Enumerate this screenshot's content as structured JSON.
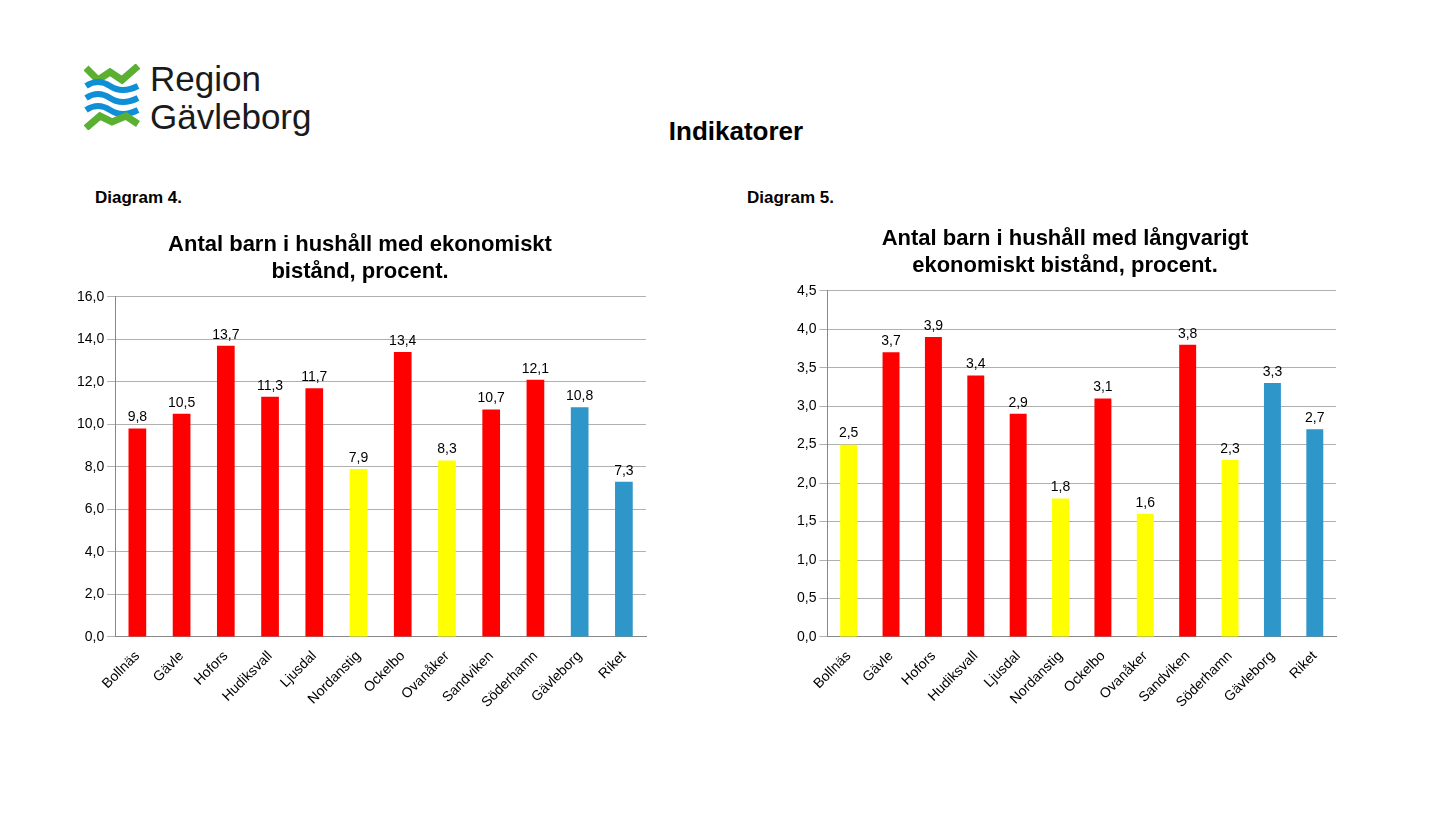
{
  "page": {
    "logo": [
      "Region",
      "Gävleborg"
    ],
    "heading": "Indikatorer"
  },
  "chart_data": [
    {
      "type": "bar",
      "annotation": "Diagram 4.",
      "title": [
        "Antal barn i hushåll med ekonomiskt",
        "bistånd, procent."
      ],
      "categories": [
        "Bollnäs",
        "Gävle",
        "Hofors",
        "Hudiksvall",
        "Ljusdal",
        "Nordanstig",
        "Ockelbo",
        "Ovanåker",
        "Sandviken",
        "Söderhamn",
        "Gävleborg",
        "Riket"
      ],
      "values": [
        9.8,
        10.5,
        13.7,
        11.3,
        11.7,
        7.9,
        13.4,
        8.3,
        10.7,
        12.1,
        10.8,
        7.3
      ],
      "value_labels": [
        "9,8",
        "10,5",
        "13,7",
        "11,3",
        "11,7",
        "7,9",
        "13,4",
        "8,3",
        "10,7",
        "12,1",
        "10,8",
        "7,3"
      ],
      "colors": [
        "#ff0000",
        "#ff0000",
        "#ff0000",
        "#ff0000",
        "#ff0000",
        "#ffff00",
        "#ff0000",
        "#ffff00",
        "#ff0000",
        "#ff0000",
        "#2e96c8",
        "#2e96c8"
      ],
      "ylim": [
        0,
        16
      ],
      "yticks": [
        {
          "value": 0,
          "label": "0,0"
        },
        {
          "value": 2,
          "label": "2,0"
        },
        {
          "value": 4,
          "label": "4,0"
        },
        {
          "value": 6,
          "label": "6,0"
        },
        {
          "value": 8,
          "label": "8,0"
        },
        {
          "value": 10,
          "label": "10,0"
        },
        {
          "value": 12,
          "label": "12,0"
        },
        {
          "value": 14,
          "label": "14,0"
        },
        {
          "value": 16,
          "label": "16,0"
        }
      ],
      "grid": true,
      "data_labels": true
    },
    {
      "type": "bar",
      "annotation": "Diagram 5.",
      "title": [
        "Antal barn i hushåll med långvarigt",
        "ekonomiskt bistånd, procent."
      ],
      "categories": [
        "Bollnäs",
        "Gävle",
        "Hofors",
        "Hudiksvall",
        "Ljusdal",
        "Nordanstig",
        "Ockelbo",
        "Ovanåker",
        "Sandviken",
        "Söderhamn",
        "Gävleborg",
        "Riket"
      ],
      "values": [
        2.5,
        3.7,
        3.9,
        3.4,
        2.9,
        1.8,
        3.1,
        1.6,
        3.8,
        2.3,
        3.3,
        2.7
      ],
      "value_labels": [
        "2,5",
        "3,7",
        "3,9",
        "3,4",
        "2,9",
        "1,8",
        "3,1",
        "1,6",
        "3,8",
        "2,3",
        "3,3",
        "2,7"
      ],
      "colors": [
        "#ffff00",
        "#ff0000",
        "#ff0000",
        "#ff0000",
        "#ff0000",
        "#ffff00",
        "#ff0000",
        "#ffff00",
        "#ff0000",
        "#ffff00",
        "#2e96c8",
        "#2e96c8"
      ],
      "ylim": [
        0,
        4.5
      ],
      "yticks": [
        {
          "value": 0,
          "label": "0,0"
        },
        {
          "value": 0.5,
          "label": "0,5"
        },
        {
          "value": 1,
          "label": "1,0"
        },
        {
          "value": 1.5,
          "label": "1,5"
        },
        {
          "value": 2,
          "label": "2,0"
        },
        {
          "value": 2.5,
          "label": "2,5"
        },
        {
          "value": 3,
          "label": "3,0"
        },
        {
          "value": 3.5,
          "label": "3,5"
        },
        {
          "value": 4,
          "label": "4,0"
        },
        {
          "value": 4.5,
          "label": "4,5"
        }
      ],
      "grid": true,
      "data_labels": true
    }
  ]
}
